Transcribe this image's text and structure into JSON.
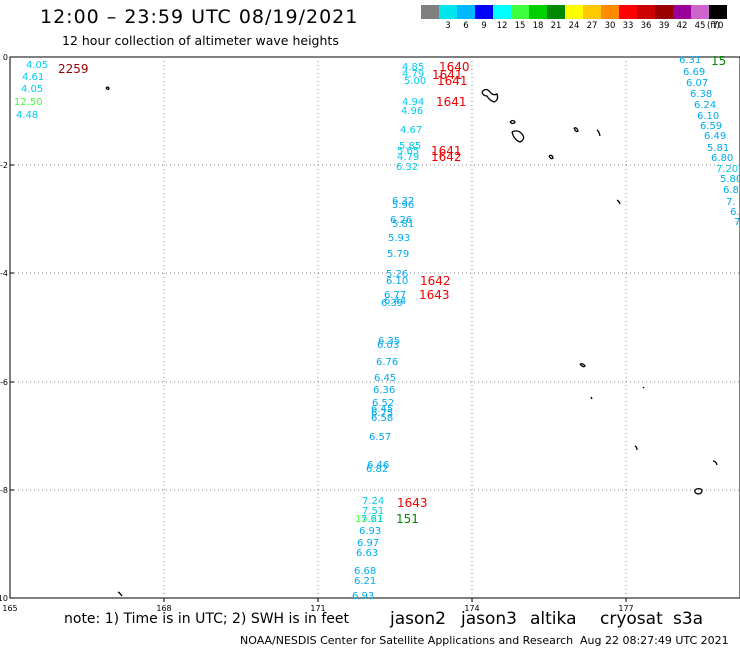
{
  "title": "12:00 – 23:59 UTC 08/19/2021",
  "subtitle": "12 hour collection of altimeter wave heights",
  "scale": {
    "unit": "(ft)",
    "bins": [
      {
        "label": "",
        "color": "#808080"
      },
      {
        "label": "3",
        "color": "#00e5ee"
      },
      {
        "label": "6",
        "color": "#00b8ff"
      },
      {
        "label": "9",
        "color": "#0000ff"
      },
      {
        "label": "12",
        "color": "#00ffff"
      },
      {
        "label": "15",
        "color": "#40ff40"
      },
      {
        "label": "18",
        "color": "#00d000"
      },
      {
        "label": "21",
        "color": "#008800"
      },
      {
        "label": "24",
        "color": "#ffff00"
      },
      {
        "label": "27",
        "color": "#ffc800"
      },
      {
        "label": "30",
        "color": "#ff8c00"
      },
      {
        "label": "33",
        "color": "#ff0000"
      },
      {
        "label": "36",
        "color": "#cc0000"
      },
      {
        "label": "39",
        "color": "#990000"
      },
      {
        "label": "42",
        "color": "#990099"
      },
      {
        "label": "45",
        "color": "#cc66cc"
      },
      {
        "label": "70",
        "color": "#000000"
      }
    ]
  },
  "axes": {
    "lon_ticks": [
      "165",
      "168",
      "171",
      "174",
      "177"
    ],
    "lat_ticks": [
      "0",
      "-2",
      "-4",
      "-6",
      "-8",
      "-10"
    ]
  },
  "observations": [
    {
      "text": "4.05",
      "color": "#00ccee"
    },
    {
      "text": "4.61",
      "color": "#00ccee"
    },
    {
      "text": "4.05",
      "color": "#00ccee"
    },
    {
      "text": "12.50",
      "color": "#40ff40"
    },
    {
      "text": "4.48",
      "color": "#00ccee"
    },
    {
      "text": "4.85",
      "color": "#00ccee"
    },
    {
      "text": "4.79",
      "color": "#00ccee"
    },
    {
      "text": "5.00",
      "color": "#00ccee"
    },
    {
      "text": "4.94",
      "color": "#00ccee"
    },
    {
      "text": "4.96",
      "color": "#00ccee"
    },
    {
      "text": "4.67",
      "color": "#00ccee"
    },
    {
      "text": "5.85",
      "color": "#00ccee"
    },
    {
      "text": "5.65",
      "color": "#00ccee"
    },
    {
      "text": "4.79",
      "color": "#00ccee"
    },
    {
      "text": "6.32",
      "color": "#00ccee"
    },
    {
      "text": "6.32",
      "color": "#00aaee"
    },
    {
      "text": "5.96",
      "color": "#00aaee"
    },
    {
      "text": "6.26",
      "color": "#00aaee"
    },
    {
      "text": "5.81",
      "color": "#00aaee"
    },
    {
      "text": "5.93",
      "color": "#00aaee"
    },
    {
      "text": "5.79",
      "color": "#00aaee"
    },
    {
      "text": "5.26",
      "color": "#00aaee"
    },
    {
      "text": "6.10",
      "color": "#00aaee"
    },
    {
      "text": "6.77",
      "color": "#00aaee"
    },
    {
      "text": "6.44",
      "color": "#00aaee"
    },
    {
      "text": "6.39",
      "color": "#00aaee"
    },
    {
      "text": "6.35",
      "color": "#00aaee"
    },
    {
      "text": "6.03",
      "color": "#00aaee"
    },
    {
      "text": "6.76",
      "color": "#00aaee"
    },
    {
      "text": "6.45",
      "color": "#00aaee"
    },
    {
      "text": "6.36",
      "color": "#00aaee"
    },
    {
      "text": "6.52",
      "color": "#00aaee"
    },
    {
      "text": "6.45",
      "color": "#00aaee"
    },
    {
      "text": "6.75",
      "color": "#00aaee"
    },
    {
      "text": "6.58",
      "color": "#00aaee"
    },
    {
      "text": "6.57",
      "color": "#00aaee"
    },
    {
      "text": "6.46",
      "color": "#00aaee"
    },
    {
      "text": "6.82",
      "color": "#00aaee"
    },
    {
      "text": "7.24",
      "color": "#00ccee"
    },
    {
      "text": "7.51",
      "color": "#00ccee"
    },
    {
      "text": "15.21",
      "color": "#40ff40"
    },
    {
      "text": "7.61",
      "color": "#00ccee"
    },
    {
      "text": "6.93",
      "color": "#00aaee"
    },
    {
      "text": "6.97",
      "color": "#00aaee"
    },
    {
      "text": "6.63",
      "color": "#00aaee"
    },
    {
      "text": "6.68",
      "color": "#00aaee"
    },
    {
      "text": "6.21",
      "color": "#00aaee"
    },
    {
      "text": "6.93",
      "color": "#00aaee"
    },
    {
      "text": "6.31",
      "color": "#00aaee"
    },
    {
      "text": "6.69",
      "color": "#00aaee"
    },
    {
      "text": "6.07",
      "color": "#00aaee"
    },
    {
      "text": "6.38",
      "color": "#00aaee"
    },
    {
      "text": "6.24",
      "color": "#00aaee"
    },
    {
      "text": "6.10",
      "color": "#00aaee"
    },
    {
      "text": "6.59",
      "color": "#00aaee"
    },
    {
      "text": "6.49",
      "color": "#00aaee"
    },
    {
      "text": "5.81",
      "color": "#00aaee"
    },
    {
      "text": "6.80",
      "color": "#00aaee"
    },
    {
      "text": "7.20",
      "color": "#00ccee"
    },
    {
      "text": "5.80",
      "color": "#00aaee"
    },
    {
      "text": "6.8",
      "color": "#00aaee"
    },
    {
      "text": "7.",
      "color": "#00aaee"
    },
    {
      "text": "6.",
      "color": "#00aaee"
    },
    {
      "text": "7",
      "color": "#00aaee"
    }
  ],
  "time_labels": [
    {
      "text": "2259",
      "color": "#990000"
    },
    {
      "text": "1640",
      "color": "#ee0000"
    },
    {
      "text": "1641",
      "color": "#ee0000"
    },
    {
      "text": "1641",
      "color": "#ee0000"
    },
    {
      "text": "1641",
      "color": "#ee0000"
    },
    {
      "text": "1641",
      "color": "#ee0000"
    },
    {
      "text": "1642",
      "color": "#ee0000"
    },
    {
      "text": "1642",
      "color": "#ee0000"
    },
    {
      "text": "1643",
      "color": "#ee0000"
    },
    {
      "text": "1643",
      "color": "#ee0000"
    },
    {
      "text": "151",
      "color": "#008800"
    },
    {
      "text": "15",
      "color": "#008800"
    }
  ],
  "note": "note:  1) Time is in UTC;  2) SWH is in feet",
  "satellites": [
    {
      "name": "jason2",
      "color": "#0000dd"
    },
    {
      "name": "jason3",
      "color": "#009900"
    },
    {
      "name": "altika",
      "color": "#ff9900"
    },
    {
      "name": "cryosat",
      "color": "#dd0000"
    },
    {
      "name": "s3a",
      "color": "#990000"
    }
  ],
  "footer": "NOAA/NESDIS Center for Satellite Applications and Research",
  "footer_time": "Aug 22 08:27:49 UTC 2021"
}
